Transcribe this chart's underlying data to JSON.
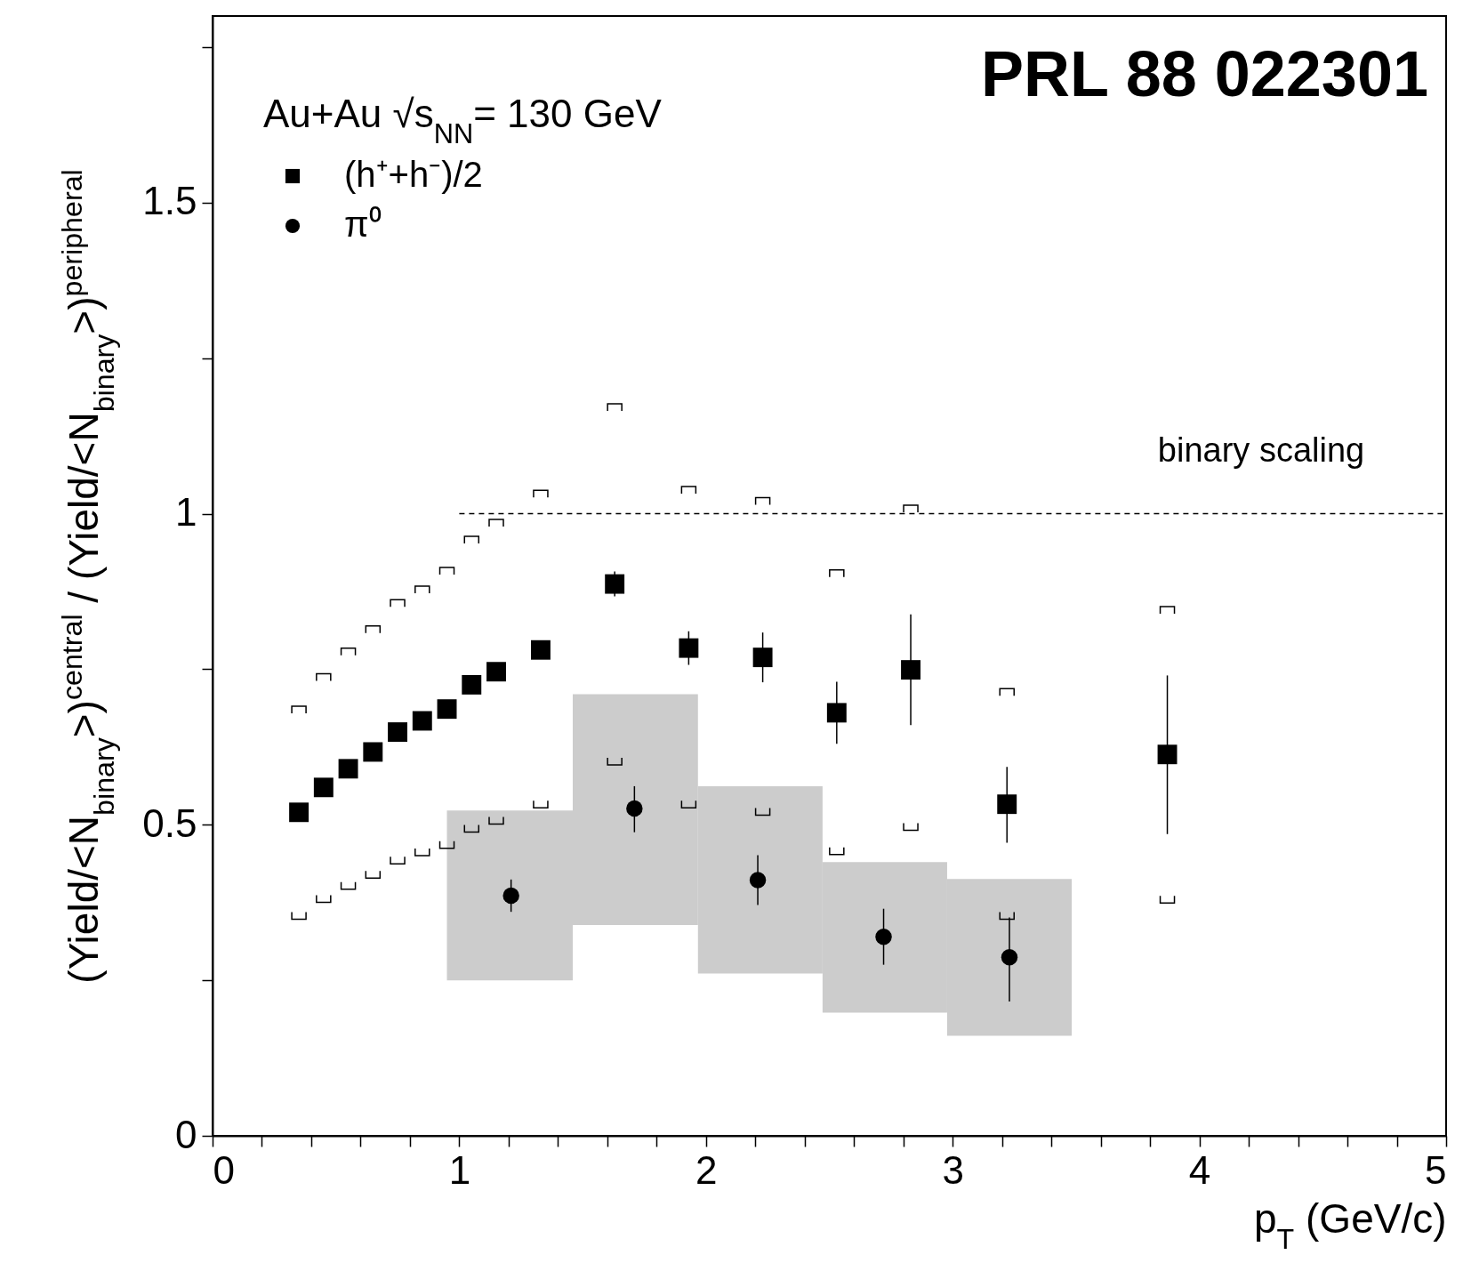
{
  "chart_data": {
    "type": "scatter",
    "xlabel": "p$_{T}$ (GeV/c)",
    "ylabel": "(Yield/<N$_{binary}$>)$^{central}$ / (Yield/<N$_{binary}$>)$^{peripheral}$",
    "annotations": [
      "PRL 88 022301",
      "Au+Au √s$_{NN}$= 130 GeV",
      "binary scaling"
    ],
    "xlim": [
      0,
      5
    ],
    "ylim": [
      0,
      1.8
    ],
    "xticks": [
      0,
      {
        "value": 0.2,
        "label": null
      },
      {
        "value": 0.4,
        "label": null
      },
      {
        "value": 0.6,
        "label": null
      },
      {
        "value": 0.8,
        "label": null
      },
      1,
      {
        "value": 1.2,
        "label": null
      },
      {
        "value": 1.4,
        "label": null
      },
      {
        "value": 1.6,
        "label": null
      },
      {
        "value": 1.8,
        "label": null
      },
      2,
      {
        "value": 2.2,
        "label": null
      },
      {
        "value": 2.4,
        "label": null
      },
      {
        "value": 2.6,
        "label": null
      },
      {
        "value": 2.8,
        "label": null
      },
      3,
      {
        "value": 3.2,
        "label": null
      },
      {
        "value": 3.4,
        "label": null
      },
      {
        "value": 3.6,
        "label": null
      },
      {
        "value": 3.8,
        "label": null
      },
      4,
      {
        "value": 4.2,
        "label": null
      },
      {
        "value": 4.4,
        "label": null
      },
      {
        "value": 4.6,
        "label": null
      },
      {
        "value": 4.8,
        "label": null
      },
      5
    ],
    "yticks": [
      0,
      {
        "value": 0.25,
        "label": null
      },
      0.5,
      {
        "value": 0.75,
        "label": null
      },
      1,
      {
        "value": 1.25,
        "label": null
      },
      1.5,
      {
        "value": 1.75,
        "label": null
      }
    ],
    "legend": "top left",
    "series": [
      {
        "type": "bar",
        "color": "#cccccc",
        "x": [
          1.205,
          1.715,
          2.22,
          2.725,
          3.23
        ],
        "base": [
          0.25,
          0.339,
          0.261,
          0.198,
          0.161
        ],
        "values": [
          0.273,
          0.371,
          0.301,
          0.242,
          0.252
        ]
      },
      {
        "type": "line",
        "line_style": "dashed",
        "color": "#000000",
        "x": [
          1,
          5
        ],
        "values": [
          1,
          1
        ]
      },
      {
        "type": "scatter",
        "color": "#000000",
        "x": [
          0.35,
          0.45,
          0.55,
          0.65,
          0.75,
          0.85,
          0.95,
          1.05,
          1.15,
          1.33,
          1.63,
          1.93,
          2.23,
          2.53,
          2.83,
          3.22,
          3.87
        ],
        "values": [
          0.685,
          0.737,
          0.778,
          0.814,
          0.856,
          0.878,
          0.908,
          0.958,
          0.985,
          1.032,
          1.171,
          1.038,
          1.02,
          0.904,
          1.008,
          0.713,
          0.845
        ]
      },
      {
        "type": "scatter",
        "color": "#000000",
        "x": [
          0.35,
          0.45,
          0.55,
          0.65,
          0.75,
          0.85,
          0.95,
          1.05,
          1.15,
          1.33,
          1.63,
          1.93,
          2.23,
          2.53,
          2.83,
          3.22,
          3.87
        ],
        "values": [
          0.354,
          0.381,
          0.402,
          0.42,
          0.443,
          0.456,
          0.468,
          0.494,
          0.507,
          0.533,
          0.602,
          0.533,
          0.521,
          0.458,
          0.497,
          0.354,
          0.38
        ]
      },
      {
        "name": "(h⁺+h⁻)/2",
        "marker": "square",
        "color": "#000000",
        "x": [
          0.35,
          0.45,
          0.55,
          0.65,
          0.75,
          0.85,
          0.95,
          1.05,
          1.15,
          1.33,
          1.63,
          1.93,
          2.23,
          2.53,
          2.83,
          3.22,
          3.87
        ],
        "values": [
          0.52,
          0.56,
          0.59,
          0.617,
          0.649,
          0.667,
          0.686,
          0.725,
          0.746,
          0.781,
          0.887,
          0.784,
          0.769,
          0.68,
          0.749,
          0.533,
          0.613
        ],
        "errors": [
          null,
          null,
          null,
          null,
          null,
          null,
          null,
          null,
          null,
          null,
          0.02,
          0.027,
          0.04,
          0.05,
          [
            0.66,
            0.838
          ],
          [
            0.471,
            0.593
          ],
          [
            0.485,
            0.74
          ]
        ]
      },
      {
        "name": "π⁰",
        "marker": "circle",
        "color": "#000000",
        "x": [
          1.21,
          1.71,
          2.21,
          2.72,
          3.23
        ],
        "values": [
          0.386,
          0.526,
          0.411,
          0.32,
          0.287
        ],
        "errors": [
          0.026,
          [
            0.488,
            0.562
          ],
          0.04,
          0.045,
          [
            0.216,
            0.351
          ]
        ]
      }
    ]
  }
}
